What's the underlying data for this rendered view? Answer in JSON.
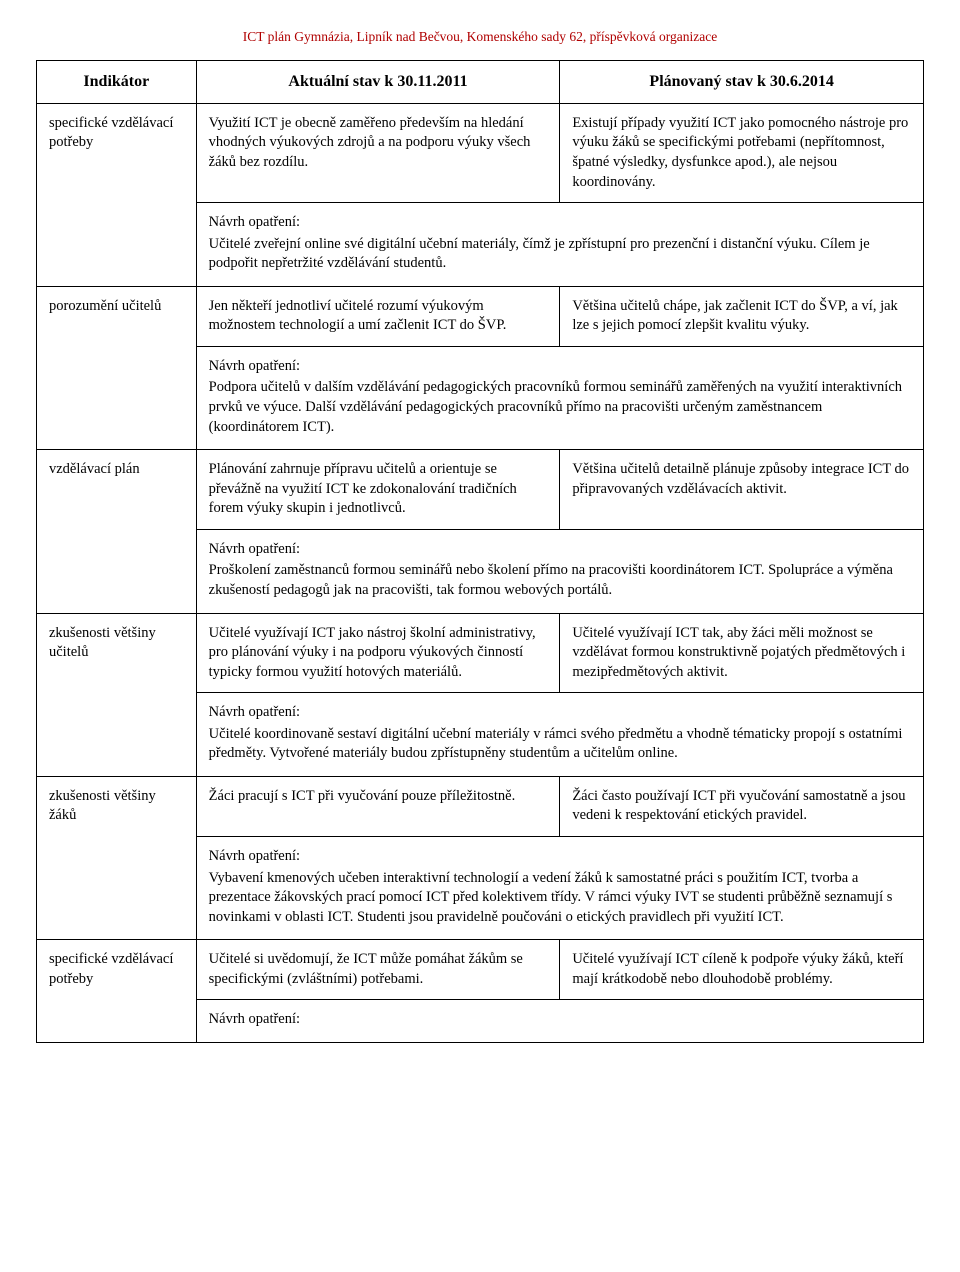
{
  "doc_title_color": "#b00000",
  "doc_title": "ICT plán  Gymnázia, Lipník nad Bečvou, Komenského sady 62, příspěvková organizace",
  "header": {
    "col1": "Indikátor",
    "col2": "Aktuální stav k 30.11.2011",
    "col3": "Plánovaný stav k 30.6.2014"
  },
  "suggest_label": "Návrh opatření:",
  "rows": [
    {
      "label": "specifické vzdělávací potřeby",
      "current": "Využití ICT je obecně zaměřeno především na hledání vhodných výukových zdrojů a na podporu výuky všech žáků bez rozdílu.",
      "planned": "Existují případy využití ICT jako pomocného nástroje pro výuku žáků se specifickými potřebami (nepřítomnost, špatné výsledky, dysfunkce apod.), ale nejsou koordinovány.",
      "suggest": "Učitelé zveřejní online své digitální učební materiály, čímž je zpřístupní pro prezenční i distanční výuku. Cílem je podpořit nepřetržité vzdělávání studentů."
    },
    {
      "label": "porozumění učitelů",
      "current": "Jen někteří jednotliví učitelé rozumí výukovým možnostem technologií a umí začlenit ICT do ŠVP.",
      "planned": "Většina učitelů chápe, jak začlenit ICT do ŠVP, a ví, jak lze s jejich pomocí zlepšit kvalitu výuky.",
      "suggest": "Podpora učitelů v dalším vzdělávání pedagogických pracovníků formou seminářů zaměřených na využití interaktivních prvků ve výuce. Další vzdělávání pedagogických pracovníků přímo na pracovišti určeným zaměstnancem (koordinátorem ICT)."
    },
    {
      "label": "vzdělávací plán",
      "current": "Plánování zahrnuje přípravu učitelů a orientuje se převážně na využití ICT ke zdokonalování tradičních forem výuky skupin i jednotlivců.",
      "planned": "Většina učitelů detailně plánuje způsoby integrace ICT do připravovaných vzdělávacích aktivit.",
      "suggest": "Proškolení zaměstnanců formou seminářů nebo školení přímo na pracovišti koordinátorem ICT. Spolupráce a výměna zkušeností pedagogů jak na pracovišti, tak formou webových portálů."
    },
    {
      "label": "zkušenosti většiny učitelů",
      "current": "Učitelé využívají ICT jako nástroj školní administrativy, pro plánování výuky i na podporu výukových činností typicky formou využití hotových materiálů.",
      "planned": "Učitelé využívají ICT tak, aby žáci měli možnost se vzdělávat formou konstruktivně pojatých předmětových i mezipředmětových aktivit.",
      "suggest": "Učitelé koordinovaně sestaví digitální učební materiály v rámci svého předmětu a vhodně tématicky propojí s ostatními předměty. Vytvořené materiály budou zpřístupněny studentům a učitelům online."
    },
    {
      "label": "zkušenosti většiny žáků",
      "current": "Žáci pracují s ICT při vyučování pouze příležitostně.",
      "planned": "Žáci často používají ICT při vyučování samostatně a jsou vedeni k respektování etických pravidel.",
      "suggest": "Vybavení kmenových učeben interaktivní technologií a vedení žáků k samostatné práci s použitím ICT, tvorba a prezentace žákovských prací pomocí ICT před kolektivem třídy. V rámci výuky IVT se studenti průběžně seznamují s novinkami v oblasti ICT. Studenti jsou pravidelně poučováni o etických pravidlech při využití ICT."
    },
    {
      "label": "specifické vzdělávací potřeby",
      "current": "Učitelé si uvědomují, že ICT může pomáhat žákům se specifickými (zvláštními) potřebami.",
      "planned": "Učitelé využívají ICT cíleně k podpoře výuky žáků, kteří mají krátkodobě nebo dlouhodobě problémy.",
      "suggest": ""
    }
  ]
}
